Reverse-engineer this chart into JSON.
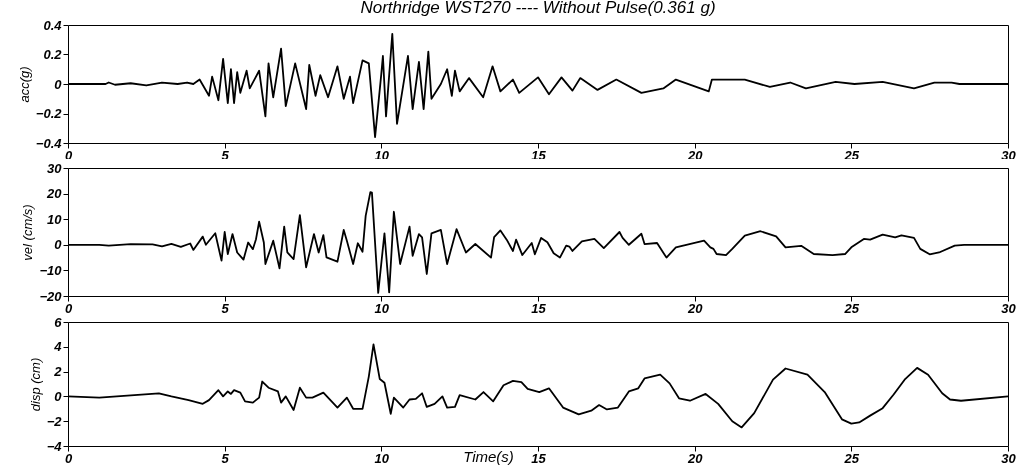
{
  "chart_data": [
    {
      "type": "line",
      "title": "Northridge WST270 ---- Without Pulse(0.361 g)",
      "ylabel": "acc(g)",
      "color": "#000000",
      "xlim": [
        0,
        30
      ],
      "xticks": [
        0,
        5,
        10,
        15,
        20,
        25,
        30
      ],
      "ylim": [
        -0.4,
        0.4
      ],
      "yticks": [
        -0.4,
        -0.2,
        0,
        0.2,
        0.4
      ],
      "x": [
        0,
        1.2,
        1.3,
        1.5,
        2,
        2.5,
        3,
        3.5,
        3.8,
        4.0,
        4.2,
        4.5,
        4.6,
        4.8,
        4.95,
        5.1,
        5.2,
        5.3,
        5.4,
        5.5,
        5.7,
        5.8,
        6.1,
        6.3,
        6.4,
        6.55,
        6.8,
        6.95,
        7.25,
        7.6,
        7.7,
        7.9,
        8.05,
        8.3,
        8.6,
        8.8,
        9.0,
        9.1,
        9.4,
        9.6,
        9.8,
        10.0,
        10.05,
        10.15,
        10.35,
        10.5,
        10.85,
        11.0,
        11.2,
        11.35,
        11.5,
        11.6,
        11.9,
        12.1,
        12.25,
        12.35,
        12.5,
        12.8,
        13.25,
        13.55,
        13.8,
        14.2,
        14.4,
        15.0,
        15.35,
        15.75,
        16.1,
        16.35,
        16.9,
        17.5,
        18.3,
        19.0,
        19.4,
        20.45,
        20.55,
        21.6,
        22.4,
        23.05,
        23.55,
        24.5,
        25.1,
        26.0,
        27.0,
        27.65,
        28.2,
        28.45,
        30
      ],
      "values": [
        0,
        0,
        0.01,
        -0.005,
        0.005,
        -0.01,
        0.01,
        0,
        0.01,
        0,
        0.03,
        -0.08,
        0.05,
        -0.11,
        0.17,
        -0.13,
        0.1,
        -0.13,
        0.08,
        -0.06,
        0.09,
        -0.03,
        0.09,
        -0.22,
        0.14,
        -0.09,
        0.24,
        -0.15,
        0.14,
        -0.17,
        0.13,
        -0.08,
        0.06,
        -0.09,
        0.12,
        -0.1,
        0.05,
        -0.13,
        0.16,
        0.14,
        -0.36,
        0.07,
        0.19,
        -0.22,
        0.34,
        -0.27,
        0.19,
        -0.17,
        0.15,
        -0.17,
        0.22,
        -0.1,
        0,
        0.1,
        -0.08,
        0.09,
        -0.05,
        0.04,
        -0.09,
        0.12,
        -0.05,
        0.03,
        -0.06,
        0.045,
        -0.07,
        0.045,
        -0.045,
        0.04,
        -0.04,
        0.03,
        -0.06,
        -0.03,
        0.03,
        -0.05,
        0.03,
        0.03,
        -0.02,
        0.01,
        -0.03,
        0.015,
        0,
        0.015,
        -0.03,
        0.01,
        0.01,
        0,
        0
      ]
    },
    {
      "type": "line",
      "ylabel": "vel (cm/s)",
      "color": "#000000",
      "xlim": [
        0,
        30
      ],
      "xticks": [
        0,
        5,
        10,
        15,
        20,
        25,
        30
      ],
      "ylim": [
        -20,
        30
      ],
      "yticks": [
        -20,
        -10,
        0,
        10,
        20,
        30
      ],
      "x": [
        0,
        1.0,
        1.3,
        2,
        2.7,
        3.0,
        3.3,
        3.6,
        3.9,
        4.0,
        4.3,
        4.4,
        4.7,
        4.9,
        5.0,
        5.1,
        5.25,
        5.4,
        5.6,
        5.75,
        5.9,
        6.0,
        6.1,
        6.25,
        6.3,
        6.55,
        6.75,
        6.9,
        7.0,
        7.2,
        7.4,
        7.6,
        7.85,
        8.0,
        8.15,
        8.25,
        8.6,
        8.8,
        8.9,
        9.1,
        9.25,
        9.4,
        9.5,
        9.65,
        9.7,
        9.9,
        10.1,
        10.25,
        10.4,
        10.6,
        10.9,
        11.0,
        11.2,
        11.3,
        11.45,
        11.6,
        11.9,
        12.1,
        12.4,
        12.7,
        13.0,
        13.5,
        13.6,
        13.8,
        14.0,
        14.2,
        14.3,
        14.5,
        14.8,
        14.9,
        15.1,
        15.3,
        15.5,
        15.7,
        15.9,
        16.0,
        16.1,
        16.4,
        16.8,
        17.1,
        17.6,
        17.7,
        17.9,
        18.3,
        18.4,
        18.8,
        19.1,
        19.4,
        20.3,
        20.5,
        20.6,
        20.7,
        21.0,
        21.2,
        21.6,
        22.1,
        22.6,
        22.9,
        23.4,
        23.8,
        24.4,
        24.8,
        25.0,
        25.4,
        25.6,
        26.0,
        26.4,
        26.6,
        27.0,
        27.2,
        27.5,
        27.8,
        28.3,
        28.6,
        30
      ],
      "values": [
        0,
        0,
        -0.3,
        0.3,
        0.2,
        -0.6,
        0.4,
        -0.8,
        0.5,
        -2,
        3.2,
        0,
        4.5,
        -6.2,
        5,
        -3.6,
        4.2,
        -3,
        -5.8,
        0.9,
        -1.7,
        2.2,
        9,
        0.9,
        -7.5,
        1.6,
        -9.2,
        7.1,
        -3,
        -5.6,
        11.6,
        -8.8,
        4.2,
        -3,
        3.8,
        -4.9,
        -6.6,
        5.8,
        1.6,
        -7.5,
        0.6,
        -2.7,
        11.3,
        20.6,
        20.4,
        -18.8,
        4.5,
        -18.6,
        12.9,
        -7.5,
        7.1,
        -4.3,
        4.2,
        2.9,
        -11.4,
        4.5,
        5.8,
        -7.5,
        6.1,
        -3,
        0.3,
        -5,
        3,
        5.6,
        2,
        -2.4,
        2,
        -4,
        0.7,
        -3.7,
        2.7,
        1,
        -3.3,
        -5,
        -0.3,
        -0.7,
        -2.4,
        1.3,
        2.3,
        -1.3,
        5,
        2.7,
        0,
        4.3,
        0.3,
        0.7,
        -5,
        -1,
        1.6,
        -1,
        -1.6,
        -3.6,
        -4,
        -1.6,
        3.6,
        5.3,
        3.3,
        -1,
        -0.4,
        -3.6,
        -4,
        -3.6,
        -1,
        2.3,
        2,
        4,
        2.9,
        3.7,
        2.7,
        -1.6,
        -3.7,
        -3,
        -0.3,
        0,
        0
      ]
    },
    {
      "type": "line",
      "ylabel": "disp (cm)",
      "xlabel": "Time(s)",
      "color": "#000000",
      "xlim": [
        0,
        30
      ],
      "xticks": [
        0,
        5,
        10,
        15,
        20,
        25,
        30
      ],
      "ylim": [
        -4,
        6
      ],
      "yticks": [
        -4,
        -2,
        0,
        2,
        4,
        6
      ],
      "x": [
        0,
        1.0,
        2.9,
        3.3,
        3.85,
        4.3,
        4.5,
        4.8,
        4.95,
        5.1,
        5.2,
        5.3,
        5.5,
        5.65,
        5.9,
        6.1,
        6.2,
        6.4,
        6.7,
        6.8,
        6.95,
        7.2,
        7.4,
        7.6,
        7.8,
        8.15,
        8.6,
        8.9,
        9.1,
        9.4,
        9.6,
        9.75,
        9.95,
        10.1,
        10.3,
        10.4,
        10.7,
        10.9,
        11.1,
        11.3,
        11.45,
        11.7,
        11.95,
        12.1,
        12.35,
        12.5,
        13.0,
        13.26,
        13.57,
        13.9,
        14.2,
        14.47,
        14.67,
        15.04,
        15.35,
        15.8,
        16.3,
        16.7,
        16.95,
        17.2,
        17.55,
        17.9,
        18.2,
        18.4,
        18.9,
        19.2,
        19.5,
        19.85,
        20.35,
        20.75,
        21.2,
        21.5,
        21.9,
        22.5,
        22.9,
        23.6,
        24.15,
        24.7,
        25.0,
        25.25,
        25.6,
        26.0,
        26.35,
        26.7,
        27.1,
        27.45,
        27.9,
        28.15,
        28.5,
        30
      ],
      "values": [
        0,
        -0.1,
        0.25,
        0,
        -0.3,
        -0.6,
        -0.3,
        0.5,
        0,
        0.4,
        0.2,
        0.5,
        0.3,
        -0.4,
        -0.5,
        -0.1,
        1.2,
        0.7,
        0.4,
        -0.5,
        0,
        -1.1,
        0.7,
        -0.1,
        -0.1,
        0.3,
        -0.9,
        -0.1,
        -1.0,
        -1.0,
        1.6,
        4.2,
        1.4,
        1.1,
        -1.4,
        -0.1,
        -0.9,
        -0.25,
        -0.2,
        0.25,
        -0.85,
        -0.6,
        0,
        -0.9,
        -0.85,
        0.1,
        -0.25,
        0.35,
        -0.4,
        0.9,
        1.25,
        1.15,
        0.6,
        0.35,
        0.65,
        -0.9,
        -1.45,
        -1.15,
        -0.7,
        -1.05,
        -0.9,
        0.4,
        0.65,
        1.45,
        1.75,
        1.05,
        -0.15,
        -0.35,
        0.2,
        -0.6,
        -2.0,
        -2.5,
        -1.35,
        1.35,
        2.25,
        1.75,
        0.35,
        -1.85,
        -2.2,
        -2.1,
        -1.55,
        -0.95,
        0.15,
        1.35,
        2.3,
        1.75,
        0.25,
        -0.25,
        -0.35,
        0
      ]
    }
  ]
}
